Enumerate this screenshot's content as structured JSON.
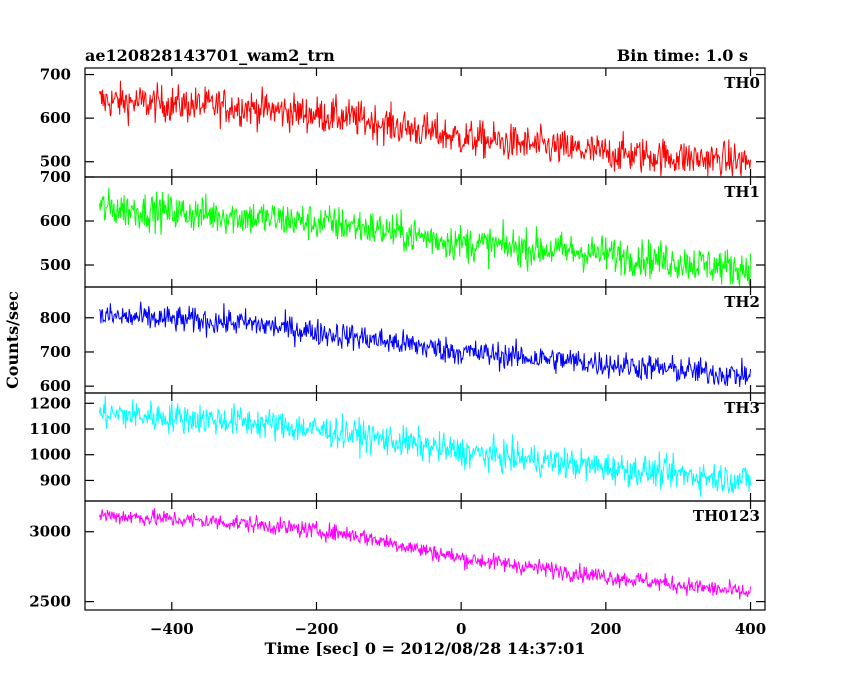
{
  "header": {
    "title": "ae120828143701_wam2_trn",
    "bin_time": "Bin time: 1.0 s"
  },
  "chart_data": {
    "type": "line",
    "xlabel": "Time [sec] 0 = 2012/08/28 14:37:01",
    "ylabel": "Counts/sec",
    "xlim": [
      -520,
      420
    ],
    "x_ticks": [
      -400,
      -200,
      0,
      200,
      400
    ],
    "x_range": [
      -500,
      400
    ],
    "panels": [
      {
        "name": "TH0",
        "color": "#ff0000",
        "ylim": [
          465,
          715
        ],
        "y_ticks": [
          500,
          600,
          700
        ],
        "trend": [
          [
            -500,
            640
          ],
          [
            -300,
            625
          ],
          [
            -150,
            600
          ],
          [
            0,
            555
          ],
          [
            200,
            520
          ],
          [
            400,
            500
          ]
        ],
        "noise": 38
      },
      {
        "name": "TH1",
        "color": "#00ff00",
        "ylim": [
          450,
          700
        ],
        "y_ticks": [
          500,
          600,
          700
        ],
        "trend": [
          [
            -500,
            630
          ],
          [
            -300,
            610
          ],
          [
            -150,
            590
          ],
          [
            0,
            550
          ],
          [
            200,
            525
          ],
          [
            400,
            490
          ]
        ],
        "noise": 38
      },
      {
        "name": "TH2",
        "color": "#0000ff",
        "ylim": [
          580,
          890
        ],
        "y_ticks": [
          600,
          700,
          800
        ],
        "trend": [
          [
            -500,
            805
          ],
          [
            -300,
            785
          ],
          [
            -150,
            745
          ],
          [
            0,
            700
          ],
          [
            200,
            665
          ],
          [
            400,
            630
          ]
        ],
        "noise": 35
      },
      {
        "name": "TH3",
        "color": "#00ffff",
        "ylim": [
          820,
          1240
        ],
        "y_ticks": [
          900,
          1000,
          1100,
          1200
        ],
        "trend": [
          [
            -500,
            1160
          ],
          [
            -300,
            1130
          ],
          [
            -150,
            1080
          ],
          [
            0,
            1010
          ],
          [
            200,
            950
          ],
          [
            400,
            900
          ]
        ],
        "noise": 55
      },
      {
        "name": "TH0123",
        "color": "#ff00ff",
        "ylim": [
          2440,
          3220
        ],
        "y_ticks": [
          2500,
          3000
        ],
        "trend": [
          [
            -500,
            3120
          ],
          [
            -300,
            3060
          ],
          [
            -150,
            2980
          ],
          [
            0,
            2810
          ],
          [
            200,
            2680
          ],
          [
            400,
            2560
          ]
        ],
        "noise": 55
      }
    ]
  }
}
